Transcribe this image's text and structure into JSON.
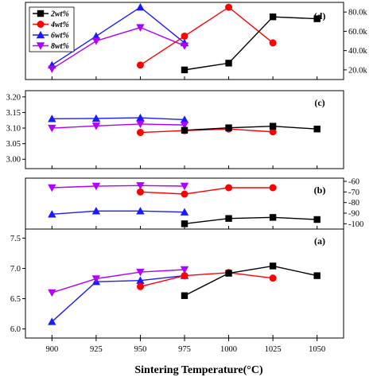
{
  "chart_data": {
    "type": "line",
    "xlabel": "Sintering Temperature(°C)",
    "x": [
      900,
      925,
      950,
      975,
      1000,
      1025,
      1050
    ],
    "xlim": [
      885,
      1065
    ],
    "x_tick_labels": [
      "900",
      "925",
      "950",
      "975",
      "1000",
      "1025",
      "1050"
    ],
    "legend": [
      {
        "name": "2wt%",
        "color": "#000000",
        "marker": "square"
      },
      {
        "name": "4wt%",
        "color": "#ff0000",
        "marker": "circle"
      },
      {
        "name": "6wt%",
        "color": "#1a1aff",
        "marker": "triangle"
      },
      {
        "name": "8wt%",
        "color": "#b000ff",
        "marker": "triangle-down"
      }
    ],
    "panels": [
      {
        "label": "(d)",
        "axis_side": "right",
        "ylim": [
          10000,
          90000
        ],
        "yticks": [
          20000,
          40000,
          60000,
          80000
        ],
        "ytick_labels": [
          "20.0k",
          "40.0k",
          "60.0k",
          "80.0k"
        ],
        "series": [
          {
            "name": "2wt%",
            "x": [
              975,
              1000,
              1025,
              1050
            ],
            "y": [
              20000,
              27000,
              75000,
              73000
            ]
          },
          {
            "name": "4wt%",
            "x": [
              950,
              975,
              1000,
              1025
            ],
            "y": [
              25000,
              55000,
              85000,
              48000
            ]
          },
          {
            "name": "6wt%",
            "x": [
              900,
              925,
              950,
              975
            ],
            "y": [
              25000,
              55000,
              85000,
              48000
            ]
          },
          {
            "name": "8wt%",
            "x": [
              900,
              925,
              950,
              975
            ],
            "y": [
              21000,
              50000,
              64000,
              45000
            ]
          }
        ]
      },
      {
        "label": "(c)",
        "axis_side": "left",
        "ylim": [
          2.97,
          3.22
        ],
        "yticks": [
          3.0,
          3.05,
          3.1,
          3.15,
          3.2
        ],
        "ytick_labels": [
          "3.00",
          "3.05",
          "3.10",
          "3.15",
          "3.20"
        ],
        "series": [
          {
            "name": "2wt%",
            "x": [
              975,
              1000,
              1025,
              1050
            ],
            "y": [
              3.093,
              3.101,
              3.106,
              3.097
            ]
          },
          {
            "name": "4wt%",
            "x": [
              950,
              975,
              1000,
              1025
            ],
            "y": [
              3.086,
              3.092,
              3.097,
              3.088
            ]
          },
          {
            "name": "6wt%",
            "x": [
              900,
              925,
              950,
              975
            ],
            "y": [
              3.13,
              3.131,
              3.133,
              3.127
            ]
          },
          {
            "name": "8wt%",
            "x": [
              900,
              925,
              950,
              975
            ],
            "y": [
              3.1,
              3.107,
              3.113,
              3.11
            ]
          }
        ]
      },
      {
        "label": "(b)",
        "axis_side": "right",
        "ylim": [
          -105,
          -57
        ],
        "yticks": [
          -60,
          -70,
          -80,
          -90,
          -100
        ],
        "ytick_labels": [
          "-60",
          "-70",
          "-80",
          "-90",
          "-100"
        ],
        "series": [
          {
            "name": "2wt%",
            "x": [
              975,
              1000,
              1025,
              1050
            ],
            "y": [
              -100,
              -95,
              -94,
              -96
            ]
          },
          {
            "name": "4wt%",
            "x": [
              950,
              975,
              1000,
              1025
            ],
            "y": [
              -70,
              -72,
              -66,
              -66
            ]
          },
          {
            "name": "6wt%",
            "x": [
              900,
              925,
              950,
              975
            ],
            "y": [
              -91,
              -88,
              -88,
              -89
            ]
          },
          {
            "name": "8wt%",
            "x": [
              900,
              925,
              950,
              975
            ],
            "y": [
              -66,
              -64.5,
              -64,
              -64.5
            ]
          }
        ]
      },
      {
        "label": "(a)",
        "axis_side": "left",
        "ylim": [
          5.85,
          7.65
        ],
        "yticks": [
          6.0,
          6.5,
          7.0,
          7.5
        ],
        "ytick_labels": [
          "6.0",
          "6.5",
          "7.0",
          "7.5"
        ],
        "series": [
          {
            "name": "2wt%",
            "x": [
              975,
              1000,
              1025,
              1050
            ],
            "y": [
              6.55,
              6.92,
              7.04,
              6.88
            ]
          },
          {
            "name": "4wt%",
            "x": [
              950,
              975,
              1000,
              1025
            ],
            "y": [
              6.7,
              6.88,
              6.93,
              6.84
            ]
          },
          {
            "name": "6wt%",
            "x": [
              900,
              925,
              950,
              975
            ],
            "y": [
              6.12,
              6.78,
              6.8,
              6.88
            ]
          },
          {
            "name": "8wt%",
            "x": [
              900,
              925,
              950,
              975
            ],
            "y": [
              6.6,
              6.83,
              6.94,
              6.98
            ]
          }
        ]
      }
    ]
  }
}
